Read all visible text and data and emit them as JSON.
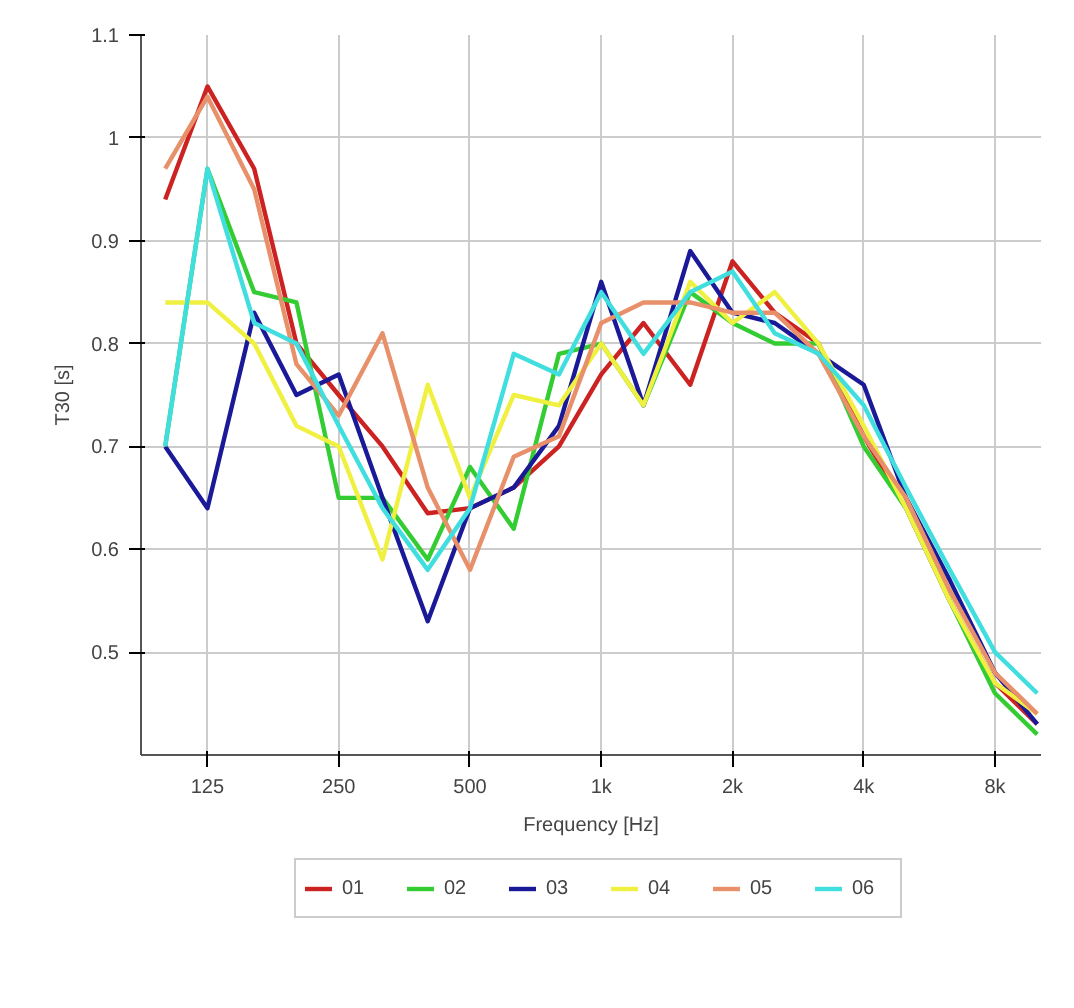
{
  "chart_data": {
    "type": "line",
    "xlabel": "Frequency [Hz]",
    "ylabel": "T30 [s]",
    "x": [
      100,
      125,
      160,
      200,
      250,
      315,
      400,
      500,
      630,
      800,
      1000,
      1250,
      1600,
      2000,
      2500,
      3150,
      4000,
      5000,
      6300,
      8000,
      10000
    ],
    "xlim": [
      88,
      10200
    ],
    "ylim": [
      0.4,
      1.1
    ],
    "xticks": [
      125,
      250,
      500,
      {
        "value": 1000,
        "label": "1k"
      },
      {
        "value": 2000,
        "label": "2k"
      },
      {
        "value": 4000,
        "label": "4k"
      },
      {
        "value": 8000,
        "label": "8k"
      }
    ],
    "yticks": [
      0.5,
      0.6,
      0.7,
      0.8,
      0.9,
      1,
      1.1
    ],
    "log": "x",
    "grid": true,
    "legend": "bottom",
    "marker": "none",
    "line_style": "solid",
    "series": [
      {
        "name": "01",
        "color": "#cc2222",
        "values": [
          0.94,
          1.05,
          0.97,
          0.8,
          0.75,
          0.7,
          0.635,
          0.64,
          0.66,
          0.7,
          0.77,
          0.82,
          0.76,
          0.88,
          0.83,
          0.8,
          0.71,
          0.64,
          0.55,
          0.47,
          0.43
        ]
      },
      {
        "name": "02",
        "color": "#33cc33",
        "values": [
          0.7,
          0.97,
          0.85,
          0.84,
          0.65,
          0.65,
          0.59,
          0.68,
          0.62,
          0.79,
          0.8,
          0.74,
          0.85,
          0.82,
          0.8,
          0.8,
          0.7,
          0.64,
          0.55,
          0.46,
          0.42
        ]
      },
      {
        "name": "03",
        "color": "#1a1a99",
        "values": [
          0.7,
          0.64,
          0.83,
          0.75,
          0.77,
          0.65,
          0.53,
          0.64,
          0.66,
          0.72,
          0.86,
          0.74,
          0.89,
          0.83,
          0.82,
          0.79,
          0.76,
          0.65,
          0.57,
          0.48,
          0.43
        ]
      },
      {
        "name": "04",
        "color": "#f0f040",
        "values": [
          0.84,
          0.84,
          0.8,
          0.72,
          0.7,
          0.59,
          0.76,
          0.65,
          0.75,
          0.74,
          0.8,
          0.74,
          0.86,
          0.82,
          0.85,
          0.8,
          0.72,
          0.64,
          0.55,
          0.47,
          0.44
        ]
      },
      {
        "name": "05",
        "color": "#e8906a",
        "values": [
          0.97,
          1.04,
          0.95,
          0.78,
          0.73,
          0.81,
          0.66,
          0.58,
          0.69,
          0.71,
          0.82,
          0.84,
          0.84,
          0.83,
          0.83,
          0.79,
          0.71,
          0.65,
          0.56,
          0.48,
          0.44
        ]
      },
      {
        "name": "06",
        "color": "#40dede",
        "values": [
          0.7,
          0.97,
          0.82,
          0.8,
          0.72,
          0.64,
          0.58,
          0.64,
          0.79,
          0.77,
          0.85,
          0.79,
          0.85,
          0.87,
          0.81,
          0.79,
          0.74,
          0.66,
          0.58,
          0.5,
          0.46
        ]
      }
    ]
  }
}
